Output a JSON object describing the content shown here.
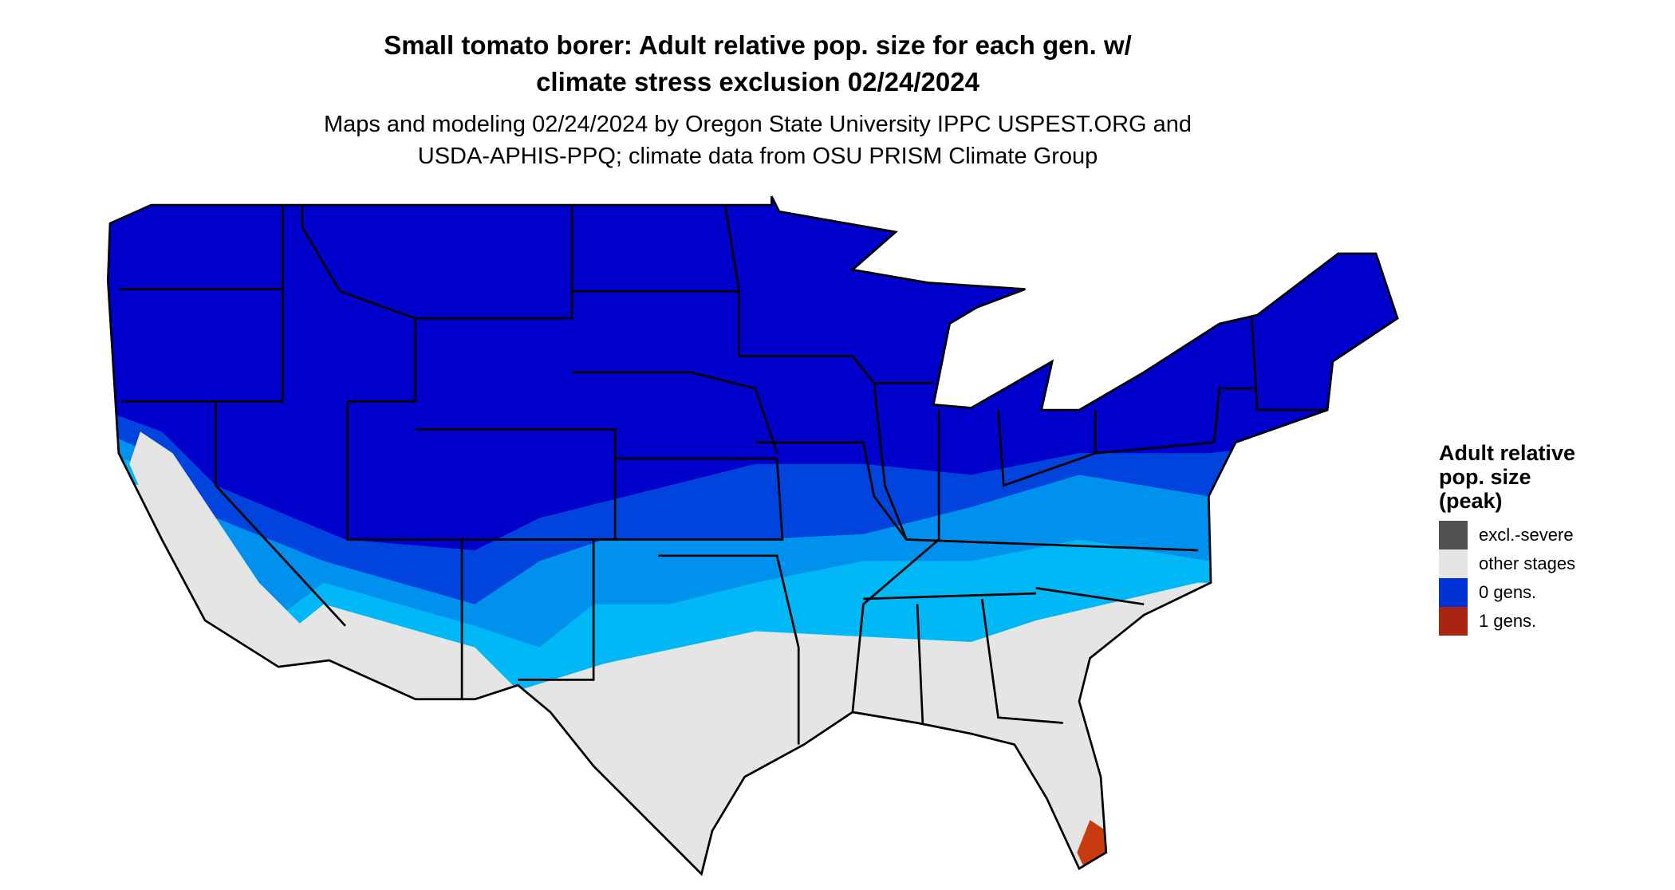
{
  "title": {
    "line1": "Small tomato borer: Adult relative pop. size for each gen. w/",
    "line2": "climate stress exclusion 02/24/2024"
  },
  "subtitle": {
    "line1": "Maps and modeling 02/24/2024 by Oregon State University IPPC USPEST.ORG and",
    "line2": "USDA-APHIS-PPQ; climate data from OSU PRISM Climate Group"
  },
  "legend": {
    "title_lines": [
      "Adult relative",
      "pop. size",
      "(peak)"
    ],
    "items": [
      {
        "label": "excl.-severe",
        "color": "#505050"
      },
      {
        "label": "other stages",
        "color": "#e5e5e5"
      },
      {
        "label": "0 gens.",
        "color": "#0033d6"
      },
      {
        "label": "1 gens.",
        "color": "#a82512"
      }
    ]
  },
  "map_colors": {
    "dark_blue": "#0000cc",
    "medium_blue": "#0044dd",
    "blue": "#0090ee",
    "cyan": "#00b8f5",
    "gray": "#e5e5e5",
    "red": "#c83a10"
  }
}
